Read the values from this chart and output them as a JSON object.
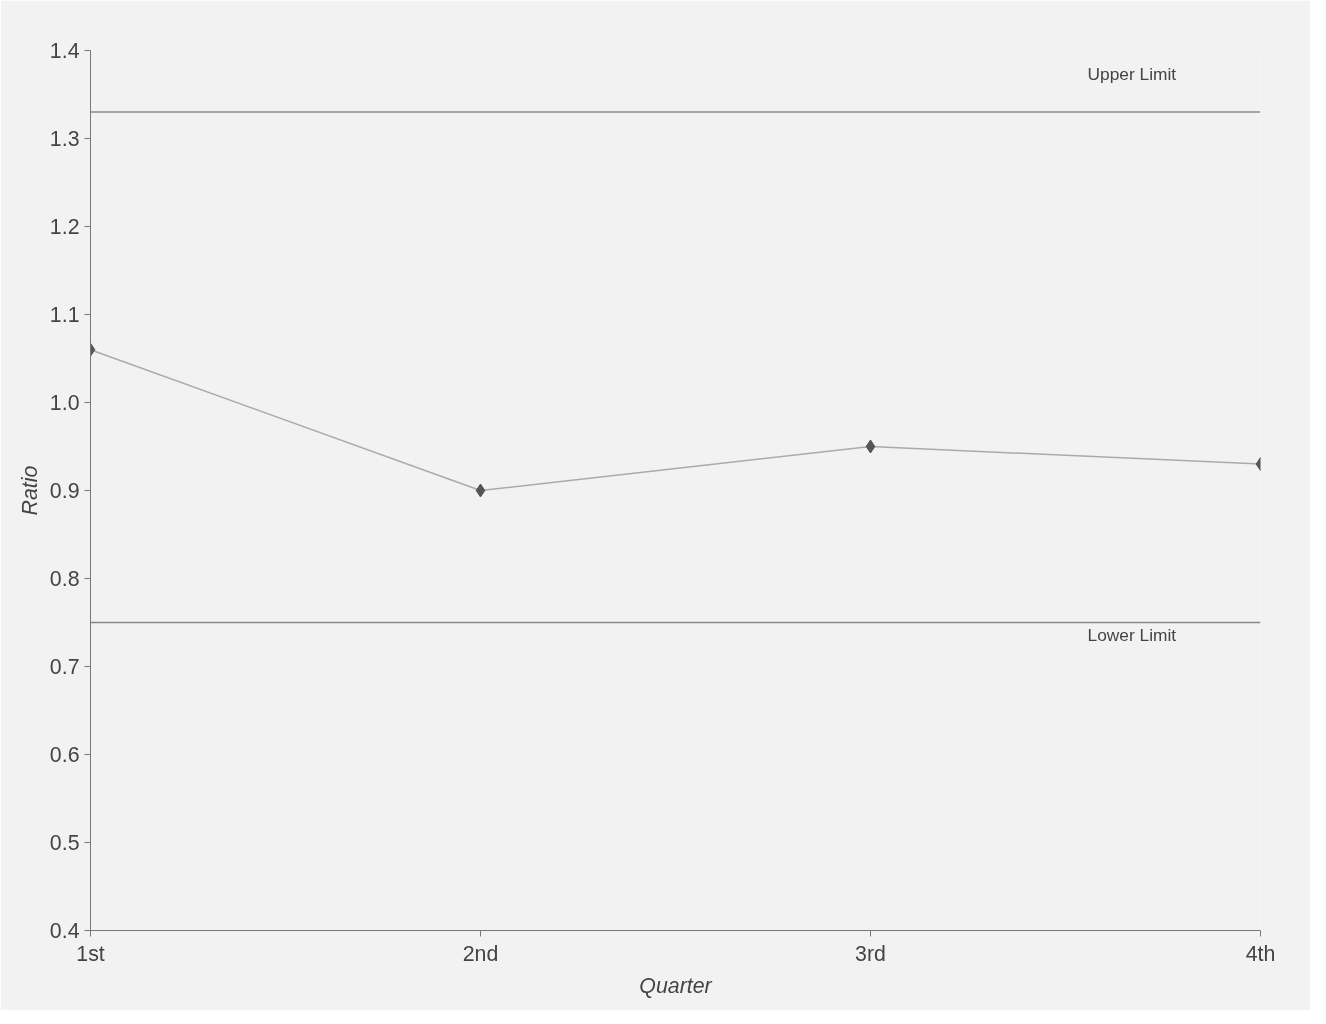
{
  "chart_data": {
    "type": "line",
    "xlabel": "Quarter",
    "ylabel": "Ratio",
    "categories": [
      "1st",
      "2nd",
      "3rd",
      "4th"
    ],
    "series": [
      {
        "color": "#555555",
        "values": [
          1.06,
          0.9,
          0.95,
          0.93
        ]
      }
    ],
    "marker": "diamond",
    "ylim": [
      0.4,
      1.4
    ],
    "yticks": [
      {
        "value": 0.4,
        "label": "0.4"
      },
      {
        "value": 0.5,
        "label": "0.5"
      },
      {
        "value": 0.6,
        "label": "0.6"
      },
      {
        "value": 0.7,
        "label": "0.7"
      },
      {
        "value": 0.8,
        "label": "0.8"
      },
      {
        "value": 0.9,
        "label": "0.9"
      },
      {
        "value": 1.0,
        "label": "1.0"
      },
      {
        "value": 1.1,
        "label": "1.1"
      },
      {
        "value": 1.2,
        "label": "1.2"
      },
      {
        "value": 1.3,
        "label": "1.3"
      },
      {
        "value": 1.4,
        "label": "1.4"
      }
    ],
    "ref_lines": [
      {
        "axis": "y",
        "value": 1.33,
        "label": "Upper Limit",
        "color": "#888888"
      },
      {
        "axis": "y",
        "value": 0.75,
        "label": "Lower Limit",
        "color": "#888888"
      }
    ]
  }
}
